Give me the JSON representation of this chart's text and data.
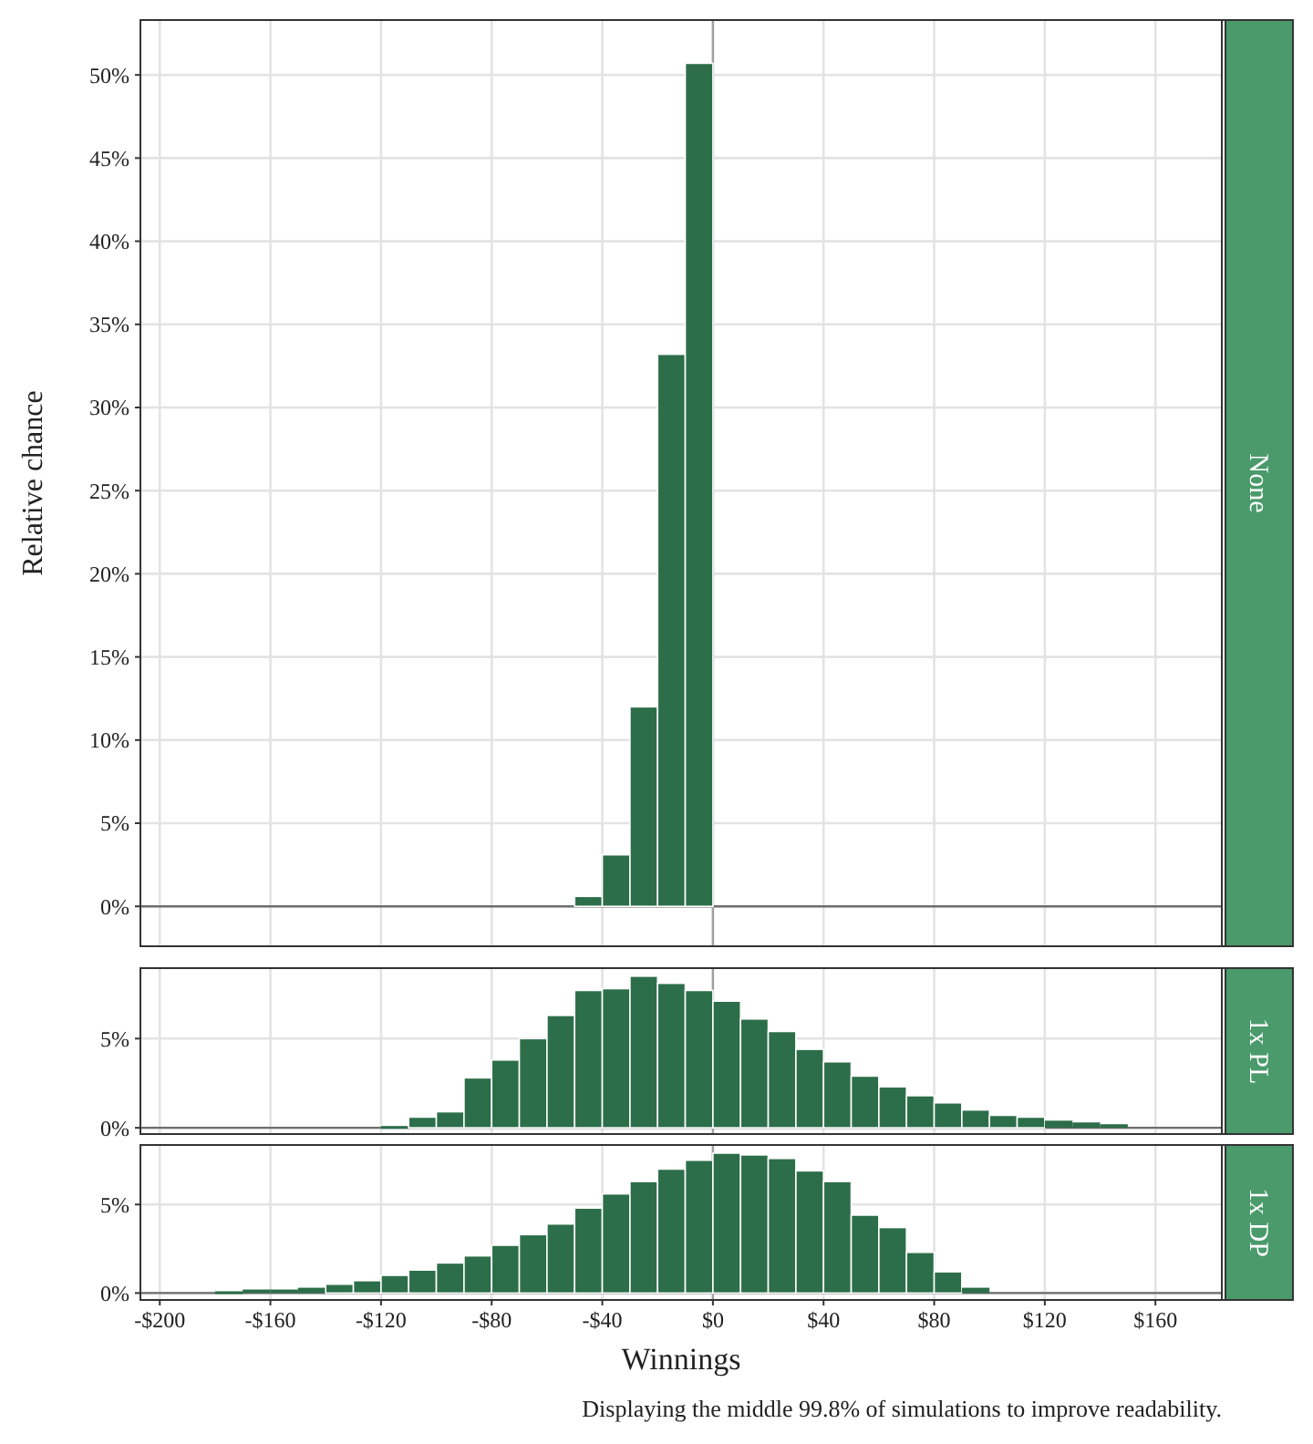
{
  "chart_data": [
    {
      "type": "histogram",
      "y2label": "None",
      "ylabel": "Relative chance",
      "bins": [
        -50,
        -40,
        -30,
        -20,
        -10,
        0
      ],
      "values": [
        0.6,
        3.1,
        12,
        33.2,
        50.7
      ],
      "color": "#2d6e4a",
      "xlim": [
        -207,
        184
      ],
      "xticks": [
        {
          "value": -200,
          "label": null
        },
        {
          "value": -160,
          "label": null
        },
        {
          "value": -120,
          "label": null
        },
        {
          "value": -80,
          "label": null
        },
        {
          "value": -40,
          "label": null
        },
        {
          "value": 0,
          "label": null
        },
        {
          "value": 40,
          "label": null
        },
        {
          "value": 80,
          "label": null
        },
        {
          "value": 120,
          "label": null
        },
        {
          "value": 160,
          "label": null
        }
      ],
      "ylim": [
        -2.4,
        53.3
      ],
      "yticks": [
        {
          "value": 0,
          "label": "0%"
        },
        {
          "value": 5,
          "label": "5%"
        },
        {
          "value": 10,
          "label": "10%"
        },
        {
          "value": 15,
          "label": "15%"
        },
        {
          "value": 20,
          "label": "20%"
        },
        {
          "value": 25,
          "label": "25%"
        },
        {
          "value": 30,
          "label": "30%"
        },
        {
          "value": 35,
          "label": "35%"
        },
        {
          "value": 40,
          "label": "40%"
        },
        {
          "value": 45,
          "label": "45%"
        },
        {
          "value": 50,
          "label": "50%"
        }
      ],
      "grid": true,
      "tick_labels": "y",
      "ref_lines": [
        {
          "axis": "y",
          "value": 0
        },
        {
          "axis": "x",
          "value": 0
        }
      ]
    },
    {
      "type": "histogram",
      "y2label": "1x PL",
      "bins": [
        -120,
        -110,
        -100,
        -90,
        -80,
        -70,
        -60,
        -50,
        -40,
        -30,
        -20,
        -10,
        0,
        10,
        20,
        30,
        40,
        50,
        60,
        70,
        80,
        90,
        100,
        110,
        120,
        130,
        140,
        150
      ],
      "values": [
        0.1,
        0.6,
        0.9,
        2.8,
        3.8,
        5.0,
        6.3,
        7.7,
        7.8,
        8.5,
        8.1,
        7.7,
        7.1,
        6.1,
        5.4,
        4.4,
        3.7,
        2.9,
        2.3,
        1.8,
        1.4,
        1.0,
        0.7,
        0.6,
        0.4,
        0.3,
        0.2
      ],
      "color": "#2d6e4a",
      "xlim": [
        -207,
        184
      ],
      "xticks": [
        {
          "value": -200,
          "label": null
        },
        {
          "value": -160,
          "label": null
        },
        {
          "value": -120,
          "label": null
        },
        {
          "value": -80,
          "label": null
        },
        {
          "value": -40,
          "label": null
        },
        {
          "value": 0,
          "label": null
        },
        {
          "value": 40,
          "label": null
        },
        {
          "value": 80,
          "label": null
        },
        {
          "value": 120,
          "label": null
        },
        {
          "value": 160,
          "label": null
        }
      ],
      "ylim": [
        -0.35,
        8.95
      ],
      "yticks": [
        {
          "value": 0,
          "label": "0%"
        },
        {
          "value": 5,
          "label": "5%"
        }
      ],
      "grid": true,
      "tick_labels": "y",
      "ref_lines": [
        {
          "axis": "y",
          "value": 0
        },
        {
          "axis": "x",
          "value": 0
        }
      ]
    },
    {
      "type": "histogram",
      "y2label": "1x DP",
      "xlabel": "Winnings",
      "annotations": [
        "Displaying the middle 99.8% of simulations to improve readability."
      ],
      "bins": [
        -190,
        -180,
        -170,
        -160,
        -150,
        -140,
        -130,
        -120,
        -110,
        -100,
        -90,
        -80,
        -70,
        -60,
        -50,
        -40,
        -30,
        -20,
        -10,
        0,
        10,
        20,
        30,
        40,
        50,
        60,
        70,
        80,
        90,
        100
      ],
      "values": [
        0.0,
        0.1,
        0.2,
        0.2,
        0.3,
        0.5,
        0.7,
        1.0,
        1.3,
        1.7,
        2.1,
        2.7,
        3.3,
        3.9,
        4.8,
        5.6,
        6.3,
        7.0,
        7.5,
        7.9,
        7.8,
        7.6,
        6.9,
        6.3,
        4.4,
        3.7,
        2.3,
        1.2,
        0.3
      ],
      "color": "#2d6e4a",
      "xlim": [
        -207,
        184
      ],
      "xticks": [
        {
          "value": -200,
          "label": "-$200"
        },
        {
          "value": -160,
          "label": "-$160"
        },
        {
          "value": -120,
          "label": "-$120"
        },
        {
          "value": -80,
          "label": "-$80"
        },
        {
          "value": -40,
          "label": "-$40"
        },
        {
          "value": 0,
          "label": "$0"
        },
        {
          "value": 40,
          "label": "$40"
        },
        {
          "value": 80,
          "label": "$80"
        },
        {
          "value": 120,
          "label": "$120"
        },
        {
          "value": 160,
          "label": "$160"
        }
      ],
      "ylim": [
        -0.39,
        8.36
      ],
      "yticks": [
        {
          "value": 0,
          "label": "0%"
        },
        {
          "value": 5,
          "label": "5%"
        }
      ],
      "grid": true,
      "ref_lines": [
        {
          "axis": "y",
          "value": 0
        },
        {
          "axis": "x",
          "value": 0
        }
      ]
    }
  ]
}
